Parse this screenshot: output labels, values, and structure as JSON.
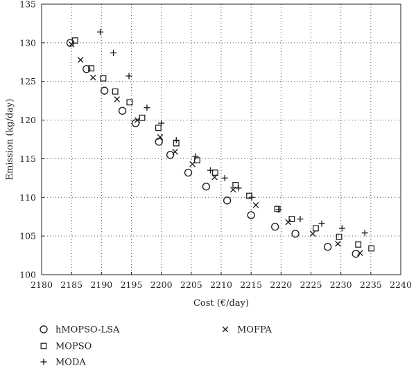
{
  "chart_data": {
    "type": "scatter",
    "title": "",
    "xlabel": "Cost (€/day)",
    "ylabel": "Emission (kg/day)",
    "xlim": [
      2180,
      2240
    ],
    "ylim": [
      100,
      135
    ],
    "xticks": [
      2180,
      2185,
      2190,
      2195,
      2200,
      2205,
      2210,
      2215,
      2220,
      2225,
      2230,
      2235,
      2240
    ],
    "yticks": [
      100,
      105,
      110,
      115,
      120,
      125,
      130,
      135
    ],
    "grid": true,
    "legend_placement": "below-plot",
    "series": [
      {
        "name": "hMOPSO-LSA",
        "marker": "circle",
        "x": [
          2184.8,
          2187.5,
          2190.5,
          2193.5,
          2195.7,
          2199.6,
          2201.5,
          2204.5,
          2207.5,
          2211.0,
          2215.0,
          2219.0,
          2222.4,
          2227.8,
          2232.5
        ],
        "y": [
          130.0,
          126.6,
          123.8,
          121.2,
          119.6,
          117.2,
          115.5,
          113.2,
          111.4,
          109.6,
          107.7,
          106.2,
          105.3,
          103.6,
          102.7
        ]
      },
      {
        "name": "MOPSO",
        "marker": "square",
        "x": [
          2185.6,
          2188.3,
          2190.3,
          2192.3,
          2194.7,
          2196.8,
          2199.5,
          2202.5,
          2206.0,
          2209.0,
          2212.4,
          2214.7,
          2219.4,
          2221.8,
          2225.8,
          2229.7,
          2232.9,
          2235.1
        ],
        "y": [
          130.3,
          126.7,
          125.4,
          123.7,
          122.3,
          120.3,
          119.0,
          117.0,
          114.8,
          113.2,
          111.6,
          110.2,
          108.5,
          107.2,
          106.0,
          104.9,
          103.9,
          103.4
        ]
      },
      {
        "name": "MODA",
        "marker": "plus",
        "x": [
          2189.8,
          2192.0,
          2194.6,
          2197.6,
          2200.0,
          2202.5,
          2205.7,
          2208.2,
          2210.6,
          2212.9,
          2215.1,
          2219.6,
          2223.2,
          2226.8,
          2230.2,
          2234.0
        ],
        "y": [
          131.4,
          128.7,
          125.7,
          121.6,
          119.6,
          117.4,
          115.3,
          113.5,
          112.5,
          111.2,
          110.0,
          108.4,
          107.2,
          106.6,
          106.0,
          105.4
        ]
      },
      {
        "name": "MOFPA",
        "marker": "cross",
        "x": [
          2185.0,
          2186.5,
          2188.6,
          2192.6,
          2196.0,
          2199.8,
          2202.3,
          2205.2,
          2208.9,
          2212.0,
          2215.8,
          2221.2,
          2225.3,
          2229.5,
          2233.2
        ],
        "y": [
          129.8,
          127.8,
          125.5,
          122.7,
          120.0,
          117.8,
          115.9,
          114.3,
          112.6,
          111.0,
          109.0,
          106.8,
          105.3,
          104.0,
          102.8
        ]
      }
    ]
  }
}
